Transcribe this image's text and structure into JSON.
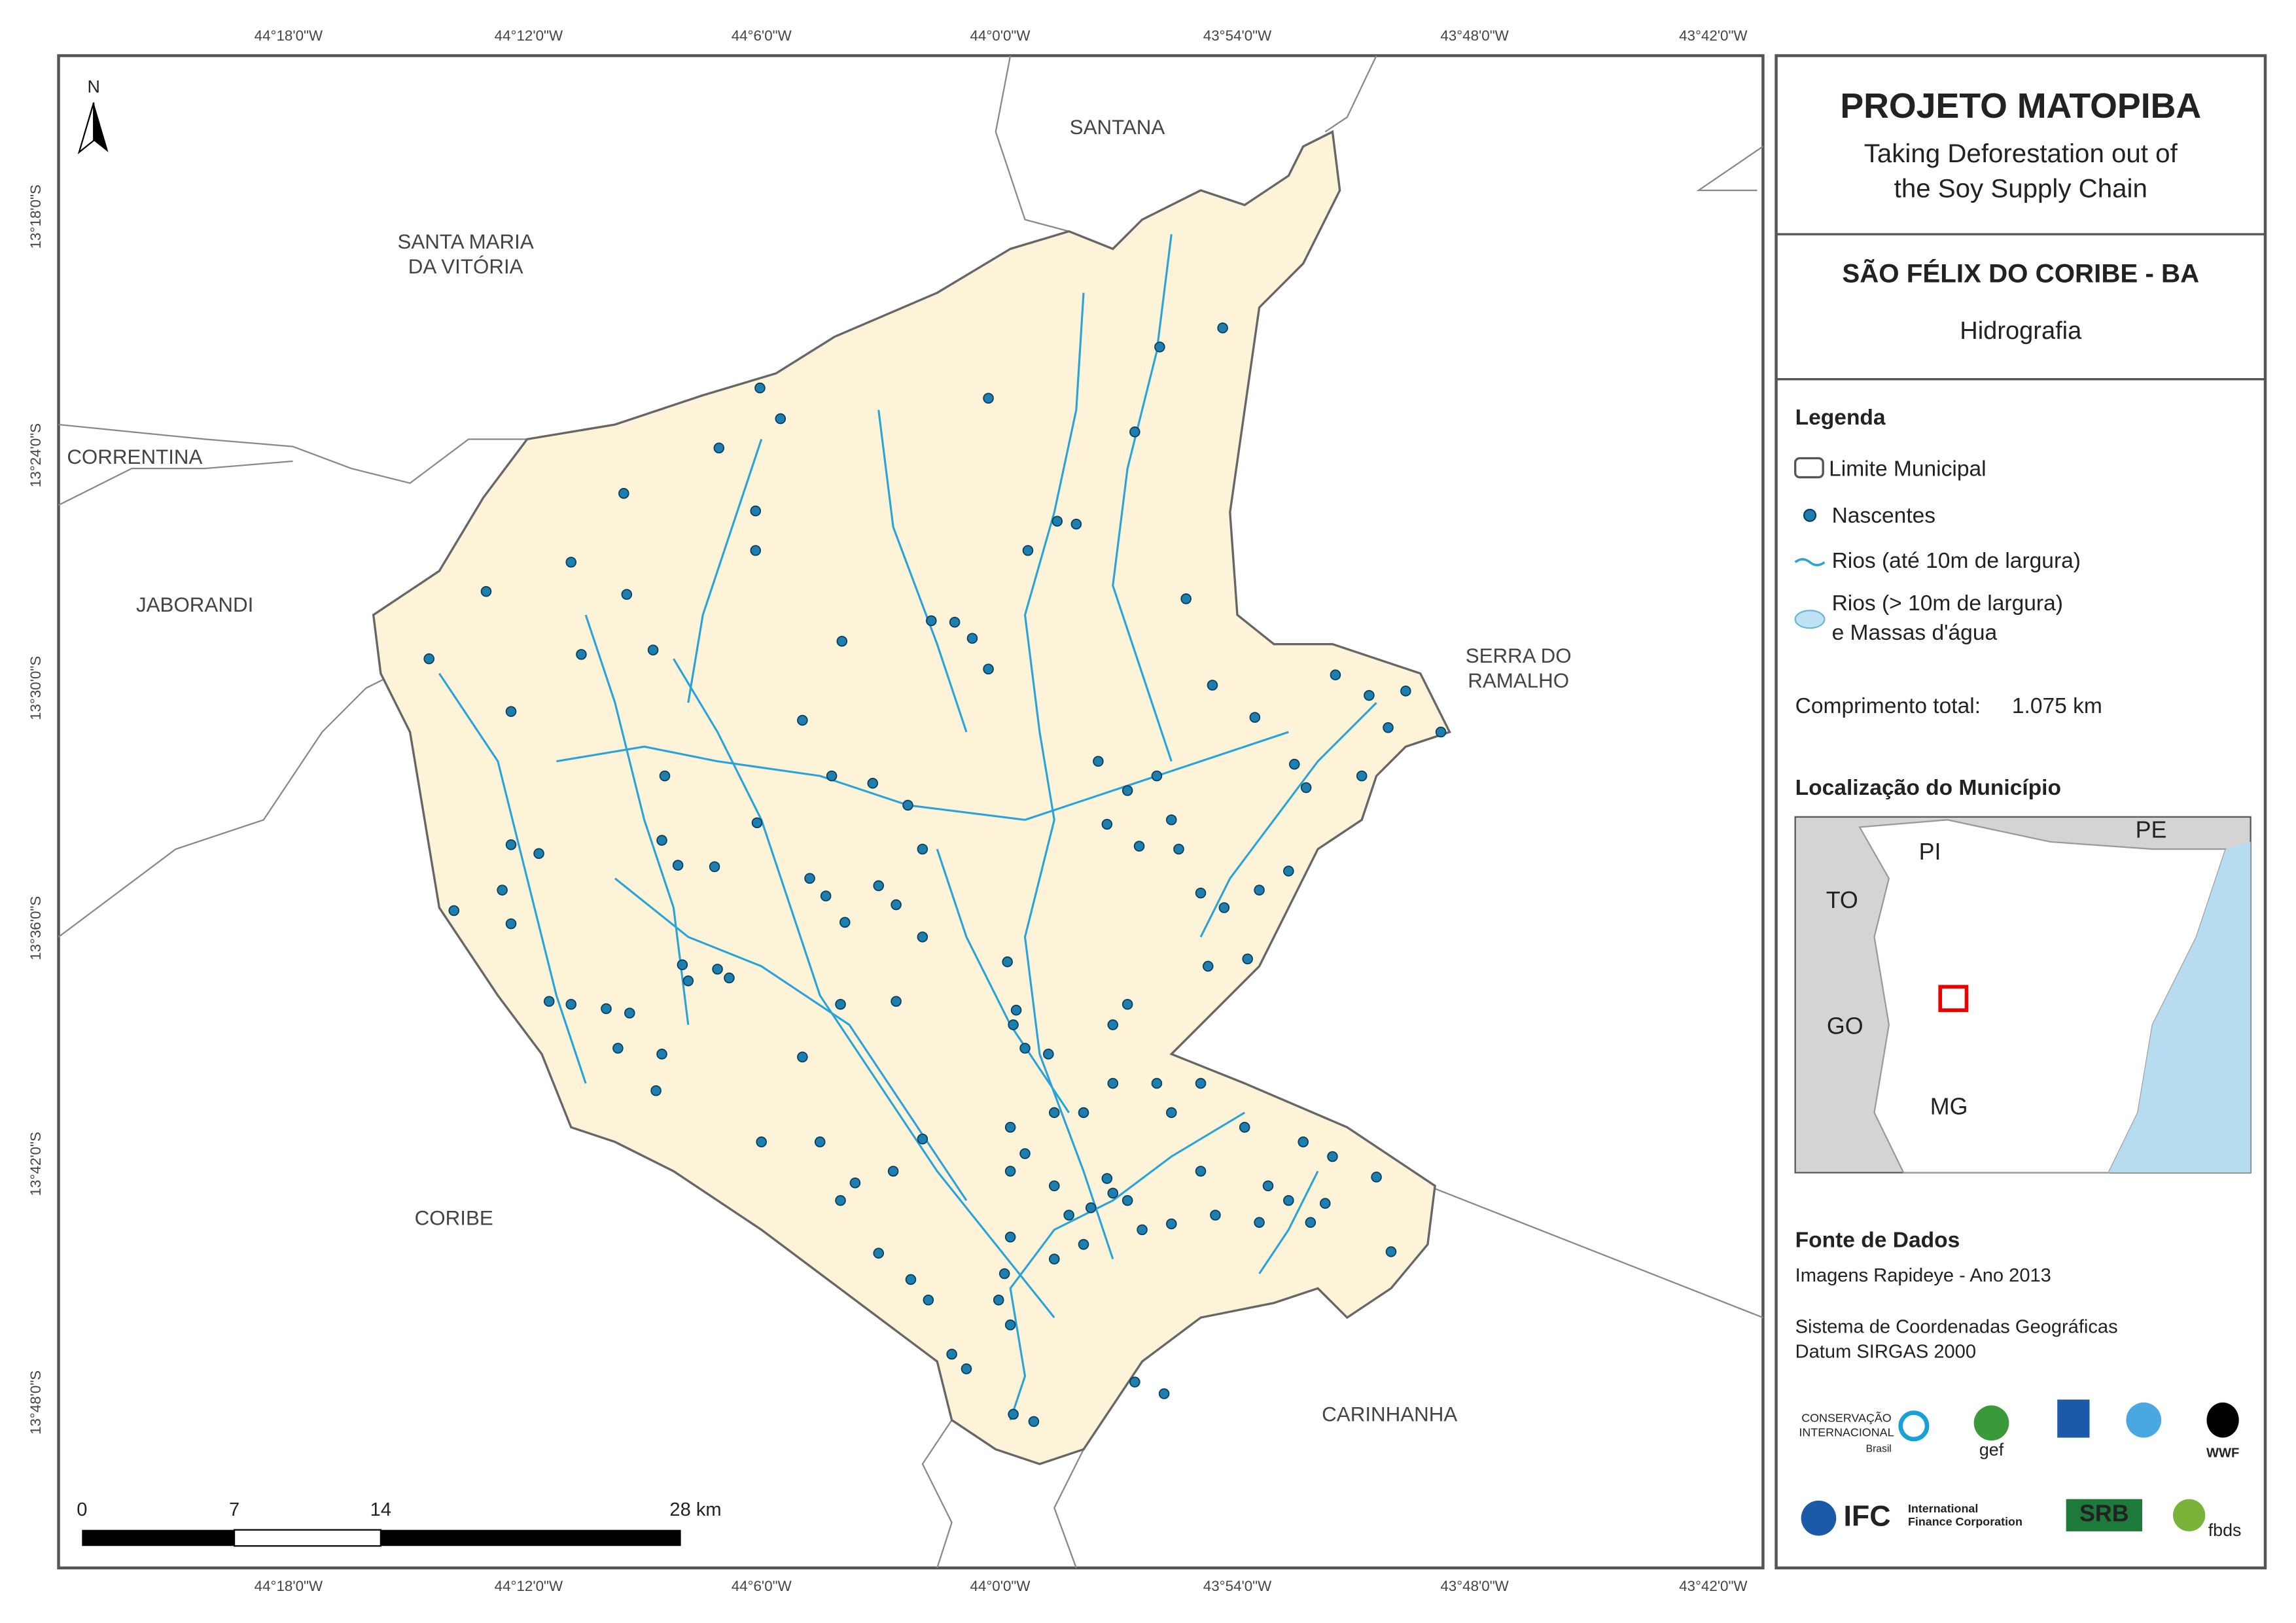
{
  "header": {
    "title": "PROJETO MATOPIBA",
    "subtitle_lines": [
      "Taking Deforestation out of",
      "the Soy Supply Chain"
    ]
  },
  "municipality": {
    "name": "SÃO FÉLIX DO CORIBE - BA",
    "theme": "Hidrografia"
  },
  "legend": {
    "title": "Legenda",
    "boundary": "Limite Municipal",
    "springs": "Nascentes",
    "rivers": "Rios (até 10m de largura)",
    "water_lines": [
      "Rios (> 10m de largura)",
      "e Massas d'água"
    ]
  },
  "total_length": {
    "label": "Comprimento total:",
    "value": "1.075 km"
  },
  "location": {
    "title": "Localização do Município",
    "labels": [
      "PI",
      "PE",
      "TO",
      "GO",
      "MG"
    ]
  },
  "sources": {
    "title": "Fonte de Dados",
    "lines": [
      "Imagens Rapideye - Ano 2013",
      "Sistema de Coordenadas Geográficas",
      "Datum SIRGAS 2000"
    ]
  },
  "map": {
    "north": "N",
    "place_labels": [
      {
        "lines": [
          "SANTANA"
        ]
      },
      {
        "lines": [
          "SANTA MARIA",
          "DA VITÓRIA"
        ]
      },
      {
        "lines": [
          "CORRENTINA"
        ]
      },
      {
        "lines": [
          "JABORANDI"
        ]
      },
      {
        "lines": [
          "SERRA DO",
          "RAMALHO"
        ]
      },
      {
        "lines": [
          "CORIBE"
        ]
      },
      {
        "lines": [
          "CARINHANHA"
        ]
      }
    ],
    "x_ticks": [
      "44°18'0\"W",
      "44°12'0\"W",
      "44°6'0\"W",
      "44°0'0\"W",
      "43°54'0\"W",
      "43°48'0\"W",
      "43°42'0\"W"
    ],
    "y_ticks": [
      "13°18'0\"S",
      "13°24'0\"S",
      "13°30'0\"S",
      "13°36'0\"S",
      "13°42'0\"S",
      "13°48'0\"S"
    ],
    "scale_labels": [
      "0",
      "7",
      "14",
      "28 km"
    ]
  },
  "logos": [
    "CONSERVAÇÃO",
    "INTERNACIONAL",
    "Brasil",
    "gef",
    "WWF",
    "IFC",
    "International",
    "Finance Corporation",
    "SRB",
    "fbds"
  ]
}
